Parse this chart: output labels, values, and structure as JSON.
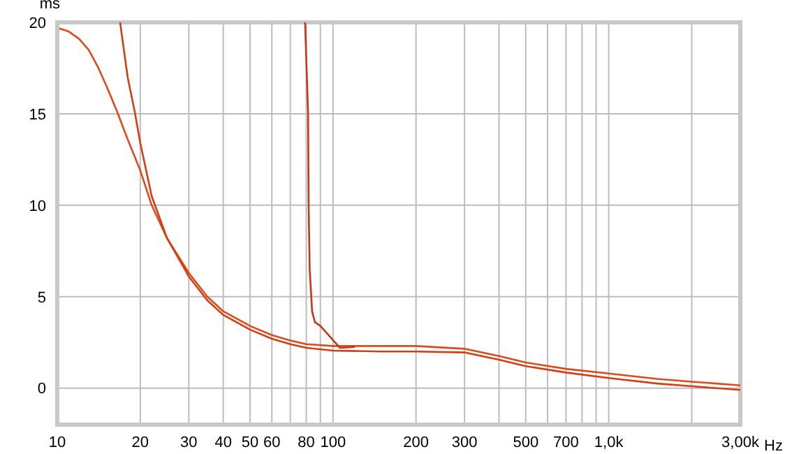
{
  "chart_data": {
    "type": "line",
    "xlabel": "Hz",
    "ylabel": "ms",
    "log": "x",
    "grid": true,
    "legend": false,
    "marker": "none",
    "line_style": "solid",
    "xlim": [
      10,
      3000
    ],
    "ylim": [
      -2,
      20
    ],
    "xticks": [
      10,
      20,
      30,
      40,
      50,
      60,
      {
        "value": 70,
        "label": null
      },
      80,
      {
        "value": 90,
        "label": null
      },
      100,
      200,
      300,
      {
        "value": 400,
        "label": null
      },
      500,
      {
        "value": 600,
        "label": null
      },
      700,
      {
        "value": 800,
        "label": null
      },
      {
        "value": 900,
        "label": null
      },
      {
        "value": 1000,
        "label": "1,0k"
      },
      {
        "value": 2000,
        "label": null
      },
      {
        "value": 3000,
        "label": "3,00k"
      }
    ],
    "yticks": [
      0,
      5,
      10,
      15,
      20
    ],
    "series": [
      {
        "color": "#dd4a1c",
        "x": [
          10,
          11,
          12,
          13,
          14,
          15,
          16.5,
          18,
          20,
          22,
          25,
          30,
          35,
          40,
          50,
          60,
          70,
          80,
          100,
          150,
          200,
          300,
          400,
          500,
          700,
          1000,
          1500,
          2000,
          3000
        ],
        "values": [
          19.7,
          19.5,
          19.1,
          18.5,
          17.6,
          16.6,
          15.1,
          13.6,
          11.9,
          10.0,
          8.2,
          6.3,
          5.0,
          4.2,
          3.4,
          2.9,
          2.6,
          2.4,
          2.3,
          2.3,
          2.3,
          2.15,
          1.75,
          1.4,
          1.05,
          0.8,
          0.5,
          0.35,
          0.15
        ]
      },
      {
        "color": "#d33e12",
        "x": [
          16.9,
          18,
          19.1,
          20,
          22,
          25,
          30,
          35,
          40,
          50,
          60,
          70,
          80,
          100,
          150,
          200,
          300,
          400,
          500,
          700,
          1000,
          1500,
          2000,
          3000
        ],
        "values": [
          20,
          17.0,
          15.1,
          13.4,
          10.5,
          8.2,
          6.1,
          4.8,
          4.0,
          3.2,
          2.7,
          2.4,
          2.2,
          2.05,
          2.0,
          2.0,
          1.95,
          1.55,
          1.2,
          0.85,
          0.55,
          0.25,
          0.1,
          -0.1
        ]
      },
      {
        "color": "#c8361a",
        "x": [
          79.2,
          81.2,
          81.6,
          82.3,
          84,
          86,
          90,
          106,
          120
        ],
        "values": [
          20,
          15.1,
          10,
          6.5,
          4.2,
          3.6,
          3.4,
          2.2,
          2.25
        ]
      }
    ]
  }
}
